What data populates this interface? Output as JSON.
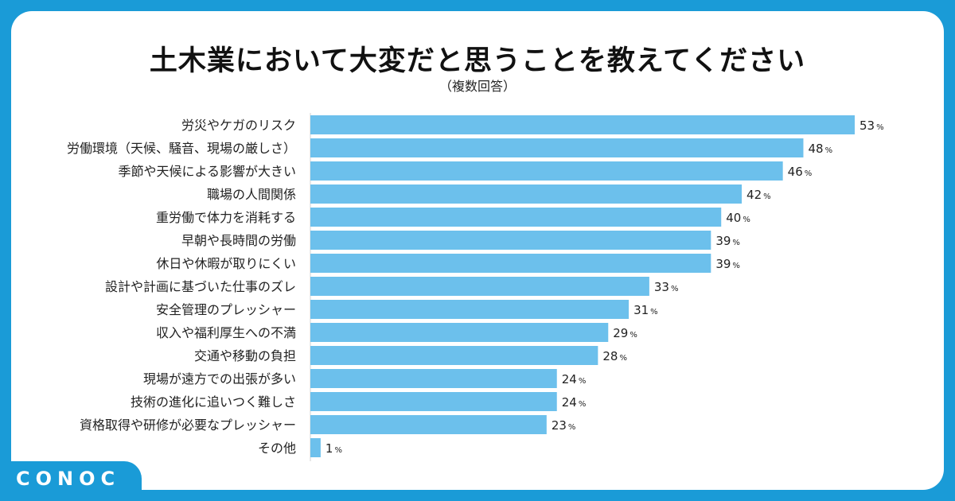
{
  "header": {
    "title": "土木業において大変だと思うことを教えてください",
    "subtitle": "（複数回答）"
  },
  "brand": {
    "logo_text": "CONOC",
    "color": "#1a9bd7"
  },
  "colors": {
    "bar": "#6cc0ec",
    "background": "#ffffff",
    "frame": "#1a9bd7"
  },
  "chart_data": {
    "type": "bar",
    "orientation": "horizontal",
    "title": "土木業において大変だと思うことを教えてください",
    "subtitle": "（複数回答）",
    "unit": "%",
    "categories": [
      "労災やケガのリスク",
      "労働環境（天候、騒音、現場の厳しさ）",
      "季節や天候による影響が大きい",
      "職場の人間関係",
      "重労働で体力を消耗する",
      "早朝や長時間の労働",
      "休日や休暇が取りにくい",
      "設計や計画に基づいた仕事のズレ",
      "安全管理のプレッシャー",
      "収入や福利厚生への不満",
      "交通や移動の負担",
      "現場が遠方での出張が多い",
      "技術の進化に追いつく難しさ",
      "資格取得や研修が必要なプレッシャー",
      "その他"
    ],
    "values": [
      53,
      48,
      46,
      42,
      40,
      39,
      39,
      33,
      31,
      29,
      28,
      24,
      24,
      23,
      1
    ],
    "xlim": [
      0,
      53
    ],
    "grid": false,
    "legend": "none"
  }
}
